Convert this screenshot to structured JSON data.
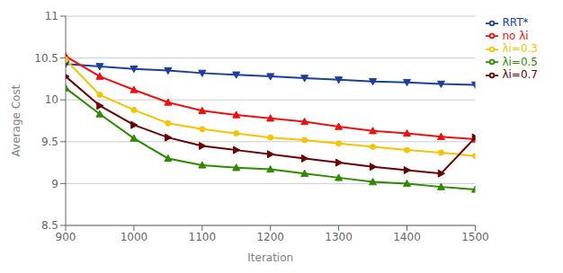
{
  "chart_data": {
    "type": "line",
    "x": [
      900,
      950,
      1000,
      1050,
      1100,
      1150,
      1200,
      1250,
      1300,
      1350,
      1400,
      1450,
      1500
    ],
    "series": [
      {
        "name": "RRT*",
        "color": "#1c3f9e",
        "marker": "triangle_down",
        "values": [
          10.43,
          10.4,
          10.37,
          10.35,
          10.32,
          10.3,
          10.28,
          10.26,
          10.24,
          10.22,
          10.21,
          10.19,
          10.18
        ]
      },
      {
        "name": "no λi",
        "color": "#ee1010",
        "marker": "triangle_up",
        "values": [
          10.52,
          10.28,
          10.12,
          9.97,
          9.87,
          9.82,
          9.78,
          9.74,
          9.68,
          9.63,
          9.6,
          9.56,
          9.53
        ]
      },
      {
        "name": "λi=0.3",
        "color": "#f5c400",
        "marker": "circle",
        "values": [
          10.48,
          10.06,
          9.88,
          9.72,
          9.65,
          9.6,
          9.55,
          9.52,
          9.48,
          9.44,
          9.4,
          9.37,
          9.33
        ]
      },
      {
        "name": "λi=0.5",
        "color": "#2e8b00",
        "marker": "triangle_up",
        "values": [
          10.14,
          9.83,
          9.54,
          9.3,
          9.22,
          9.19,
          9.17,
          9.12,
          9.07,
          9.02,
          9.0,
          8.96,
          8.93
        ]
      },
      {
        "name": "λi=0.7",
        "color": "#6b0000",
        "marker": "triangle_right",
        "values": [
          10.28,
          9.93,
          9.7,
          9.55,
          9.45,
          9.4,
          9.35,
          9.3,
          9.25,
          9.2,
          9.16,
          9.12,
          9.55
        ]
      }
    ],
    "xlabel": "Iteration",
    "ylabel": "Average Cost",
    "xlim": [
      900,
      1500
    ],
    "xticks": [
      900,
      1000,
      1100,
      1200,
      1300,
      1400,
      1500
    ],
    "ylim": [
      8.5,
      11.0
    ],
    "yticks": [
      8.5,
      9.0,
      9.5,
      10.0,
      10.5,
      11.0
    ],
    "grid": "y",
    "legend": "upper right"
  }
}
